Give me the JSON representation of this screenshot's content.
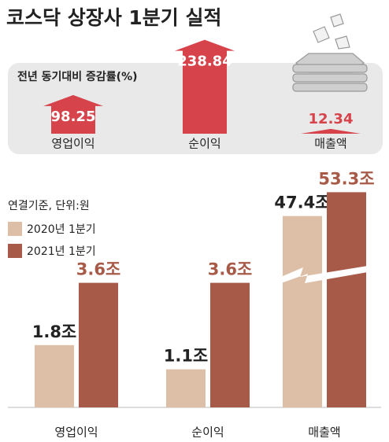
{
  "title": "코스닥 상장사 1분기 실적",
  "chart_data": [
    {
      "type": "arrow",
      "title": "전년 동기대비 증감률(%)",
      "categories": [
        "영업이익",
        "순이익",
        "매출액"
      ],
      "values": [
        98.25,
        238.84,
        12.34
      ],
      "color": "#d6434b",
      "ylim": [
        0,
        250
      ]
    },
    {
      "type": "bar",
      "subtitle": "연결기준, 단위:원",
      "categories": [
        "영업이익",
        "순이익",
        "매출액"
      ],
      "series": [
        {
          "name": "2020년 1분기",
          "color": "#dcbfa6",
          "values": [
            1.8,
            1.1,
            47.4
          ],
          "value_labels": [
            "1.8조",
            "1.1조",
            "47.4조"
          ]
        },
        {
          "name": "2021년 1분기",
          "color": "#a85a48",
          "values": [
            3.6,
            3.6,
            53.3
          ],
          "value_labels": [
            "3.6조",
            "3.6조",
            "53.3조"
          ]
        }
      ],
      "ylim": [
        0,
        7
      ],
      "y2lim": [
        0,
        60
      ]
    }
  ]
}
